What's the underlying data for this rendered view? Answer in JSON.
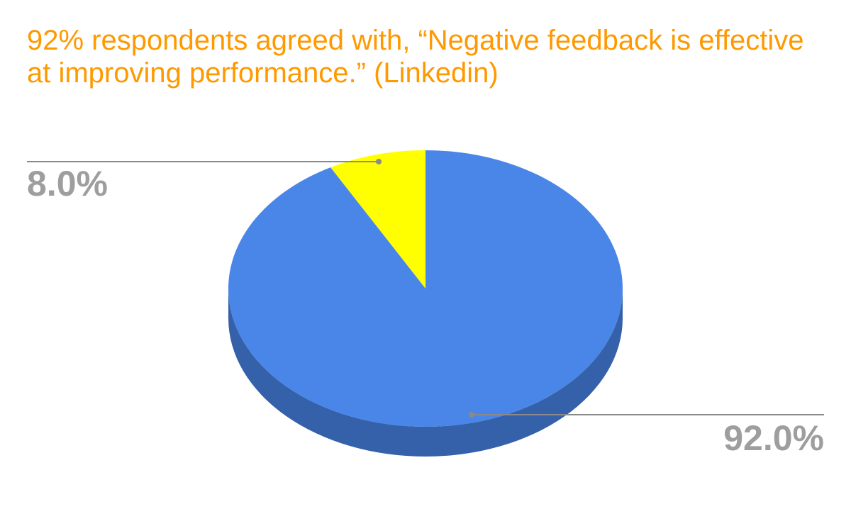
{
  "chart_data": {
    "type": "pie",
    "title": "92% respondents agreed with, “Negative feedback is effective at improving performance.” (Linkedin)",
    "slices": [
      {
        "label": "8.0%",
        "value": 8.0,
        "color": "#ffff00"
      },
      {
        "label": "92.0%",
        "value": 92.0,
        "color": "#4a86e8"
      }
    ],
    "shading_color": "#3461aa",
    "leader_color": "#8a8a8a",
    "label_color": "#9e9e9e",
    "title_color": "#ff9900",
    "three_d": true,
    "legend": "none"
  }
}
